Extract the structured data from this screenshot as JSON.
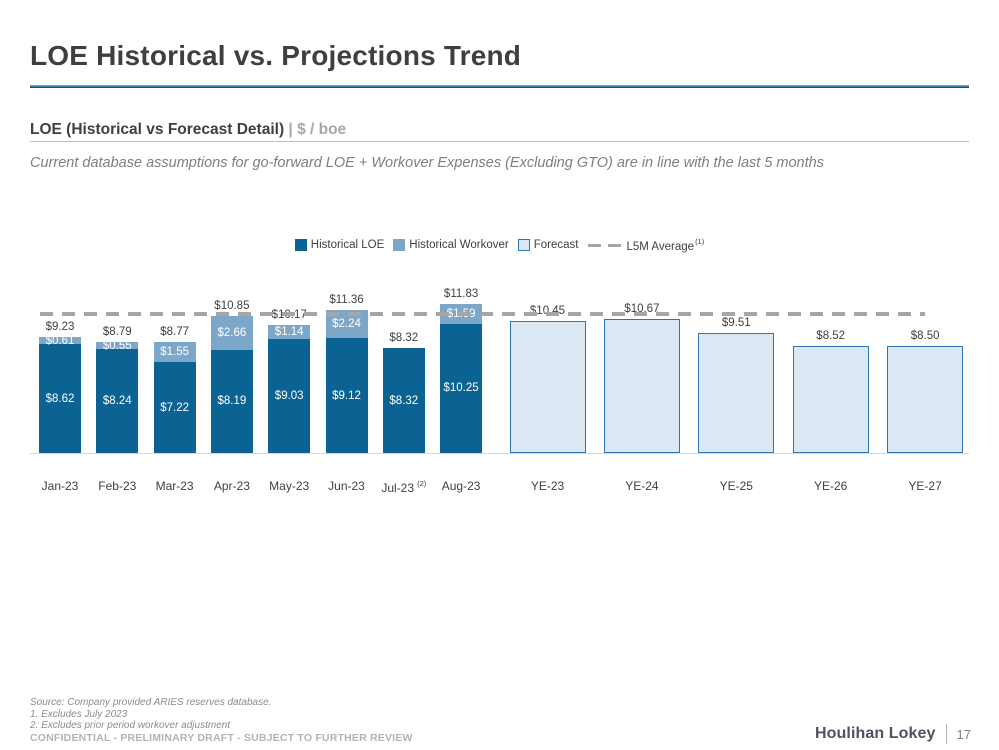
{
  "slide": {
    "title": "LOE Historical vs. Projections Trend",
    "section": {
      "title": "LOE (Historical vs Forecast Detail)",
      "separator": " | ",
      "unit": "$ / boe"
    },
    "note": "Current database assumptions for go-forward LOE + Workover Expenses (Excluding GTO) are in line with the last 5 months",
    "footer": {
      "source": "Source: Company provided ARIES reserves database.",
      "footnote1": "1. Excludes July 2023",
      "footnote2": "2. Excludes prior period workover adjustment",
      "confidential": "CONFIDENTIAL - PRELIMINARY DRAFT - SUBJECT TO FURTHER REVIEW"
    },
    "brand": {
      "name": "Houlihan Lokey",
      "page": "17"
    }
  },
  "legend": [
    {
      "label": "Historical LOE",
      "swatch": "solid-dark"
    },
    {
      "label": "Historical Workover",
      "swatch": "solid-medium"
    },
    {
      "label": "Forecast",
      "swatch": "outline-light"
    },
    {
      "label": "L5M Average",
      "footnote": "(1)",
      "swatch": "dash"
    }
  ],
  "colors": {
    "historical_loe": "#0b6394",
    "historical_workover": "#7da7c9",
    "forecast_fill": "#dbe8f4",
    "forecast_border": "#2e75b5",
    "l5m_dash": "#a6a6a6",
    "title_rule_top": "#56aed6",
    "title_rule_bottom": "#1f4e79"
  },
  "chart_data": {
    "type": "bar",
    "stacked": true,
    "title": "LOE (Historical vs Forecast Detail)",
    "ylabel": "$ / boe",
    "ylim": [
      0,
      13.5
    ],
    "grid": false,
    "legend_position": "top",
    "l5m_average": 11.05,
    "series_names": [
      "Historical LOE",
      "Historical Workover",
      "Forecast",
      "L5M Average"
    ],
    "historical": [
      {
        "category": "Jan-23",
        "loe": 8.62,
        "workover": 0.61,
        "total": 9.23,
        "loe_label": "$8.62",
        "workover_label": "$0.61",
        "total_label": "$9.23"
      },
      {
        "category": "Feb-23",
        "loe": 8.24,
        "workover": 0.55,
        "total": 8.79,
        "loe_label": "$8.24",
        "workover_label": "$0.55",
        "total_label": "$8.79"
      },
      {
        "category": "Mar-23",
        "loe": 7.22,
        "workover": 1.55,
        "total": 8.77,
        "loe_label": "$7.22",
        "workover_label": "$1.55",
        "total_label": "$8.77"
      },
      {
        "category": "Apr-23",
        "loe": 8.19,
        "workover": 2.66,
        "total": 10.85,
        "loe_label": "$8.19",
        "workover_label": "$2.66",
        "total_label": "$10.85"
      },
      {
        "category": "May-23",
        "loe": 9.03,
        "workover": 1.14,
        "total": 10.17,
        "loe_label": "$9.03",
        "workover_label": "$1.14",
        "total_label": "$10.17"
      },
      {
        "category": "Jun-23",
        "loe": 9.12,
        "workover": 2.24,
        "total": 11.36,
        "loe_label": "$9.12",
        "workover_label": "$2.24",
        "total_label": "$11.36"
      },
      {
        "category": "Jul-23",
        "category_footnote": "(2)",
        "loe": 8.32,
        "workover": 0,
        "total": 8.32,
        "loe_label": "$8.32",
        "workover_label": "",
        "total_label": "$8.32"
      },
      {
        "category": "Aug-23",
        "loe": 10.25,
        "workover": 1.59,
        "total": 11.83,
        "loe_label": "$10.25",
        "workover_label": "$1.59",
        "total_label": "$11.83"
      }
    ],
    "forecast": [
      {
        "category": "YE-23",
        "value": 10.45,
        "value_label": "$10.45"
      },
      {
        "category": "YE-24",
        "value": 10.67,
        "value_label": "$10.67"
      },
      {
        "category": "YE-25",
        "value": 9.51,
        "value_label": "$9.51"
      },
      {
        "category": "YE-26",
        "value": 8.52,
        "value_label": "$8.52"
      },
      {
        "category": "YE-27",
        "value": 8.5,
        "value_label": "$8.50"
      }
    ]
  }
}
